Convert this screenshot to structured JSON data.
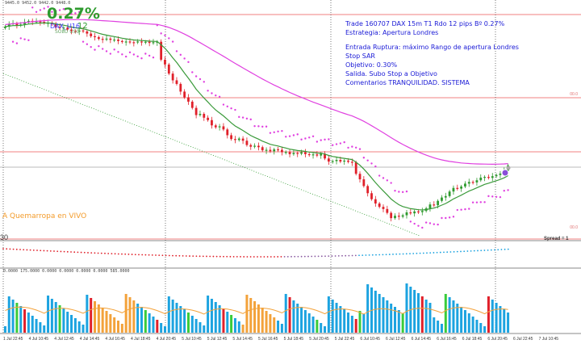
{
  "header": {
    "ohlc_text": "9445.0 9452.0 9442.0 9448.0",
    "percent": "0.27%",
    "symbol": "DAX_U16",
    "timeframe": "12",
    "subtitle": "SOLO USO"
  },
  "annotation": {
    "lines": [
      "Trade 160707 DAX 15m T1 Rdo 12 pips Bº 0.27%",
      "Estrategia: Apertura Londres",
      "",
      "Entrada Ruptura: máximo Rango de apertura Londres",
      "Stop SAR",
      "Objetivo:  0.30%",
      "Salida. Subo Stop a Objetivo",
      "Comentarios TRANQUILIDAD. SISTEMA"
    ]
  },
  "watermark": "A Quemarropa en VIVO",
  "level_label": "30",
  "spread_label": "Spread = 1",
  "right_labels": [
    "00.0",
    "00.0"
  ],
  "volume_header": "0.0000 175.0000 0.0000 0.0000 0.0000 0.0000 585.0000",
  "time_labels": [
    "1 Jul 22:45",
    "4 Jul 10:45",
    "4 Jul 12:45",
    "4 Jul 14:45",
    "4 Jul 16:45",
    "4 Jul 18:45",
    "4 Jul 20:45",
    "5 Jul 10:45",
    "5 Jul 12:45",
    "5 Jul 14:45",
    "5 Jul 16:45",
    "5 Jul 18:45",
    "5 Jul 20:45",
    "5 Jul 22:45",
    "6 Jul 10:45",
    "6 Jul 12:45",
    "6 Jul 14:45",
    "6 Jul 16:45",
    "6 Jul 18:45",
    "6 Jul 20:45",
    "6 Jul 22:45",
    "7 Jul 10:45"
  ],
  "colors": {
    "bull": "#2e9a2e",
    "bear": "#e0202a",
    "ma_fast": "#3a9a3a",
    "ma_slow": "#e040e0",
    "sar": "#e040e0",
    "vol_blue": "#1ca3e0",
    "vol_green": "#3acc3a",
    "vol_red": "#e0202a",
    "vol_orange": "#f3a23a",
    "hline": "#f08080",
    "vline": "#555555"
  },
  "chart_data": {
    "type": "candlestick",
    "closes_relative": [
      0.6,
      1.2,
      0.2,
      -0.8,
      0.3,
      1.0,
      0.5,
      -0.4,
      0.2,
      -0.2,
      -0.5,
      0.1,
      -0.6,
      -1.2,
      -0.5,
      0.3,
      -0.8,
      -0.6,
      -0.3,
      0.5,
      -0.4,
      -0.9,
      -1.1,
      -0.4,
      -0.7,
      -0.2,
      0.3,
      -0.5,
      0.1,
      -0.6,
      -0.4,
      0.2,
      -0.3,
      -0.1,
      0.4,
      -0.2,
      0.1,
      -0.5,
      0.3,
      0.2,
      -4.5,
      -2.0,
      -3.8,
      -2.8,
      -1.5,
      -3.2,
      -2.4,
      -1.8,
      -2.6,
      -3.0,
      0.5,
      -1.6,
      -1.0,
      -2.2,
      -0.8,
      0.4,
      -1.3,
      -2.4,
      -1.6,
      -0.4,
      0.6,
      -0.9,
      -1.8,
      -0.7,
      0.4,
      -0.6,
      -1.3,
      0.2,
      -0.6,
      0.8,
      -0.2,
      -1.0,
      0.1,
      -0.9,
      0.5,
      -0.3,
      0.6,
      -0.8,
      -0.3,
      0.2,
      -0.5,
      0.8,
      -2.0,
      -1.3,
      0.2,
      0.5,
      -0.7,
      0.4,
      -0.5,
      -0.2,
      -4.8,
      -2.3,
      -2.8,
      -3.0,
      -2.5,
      -1.8,
      -1.4,
      -0.9,
      -1.6,
      -2.2,
      1.0,
      -0.4,
      0.6,
      1.2,
      -0.4,
      0.8,
      -0.3,
      0.5,
      1.1,
      1.6,
      -0.3,
      1.8,
      1.4,
      0.6,
      1.9,
      1.5,
      -0.3,
      0.9,
      1.2,
      0.7,
      -0.2,
      0.9,
      1.1,
      0.3,
      -0.4,
      0.7,
      0.5,
      0.6,
      1.2,
      2.2
    ]
  }
}
